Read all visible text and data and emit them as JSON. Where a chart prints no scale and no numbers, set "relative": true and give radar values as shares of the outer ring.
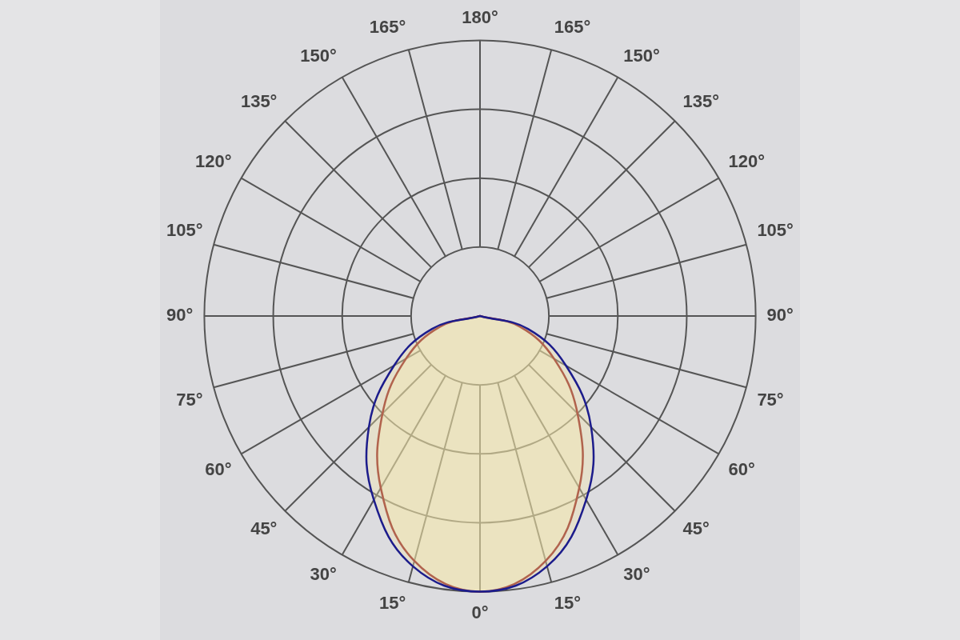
{
  "chart_data": {
    "type": "radar",
    "relative": true,
    "grid": true,
    "legend": false,
    "marker": "none",
    "categories": [
      "180°",
      "165°",
      "150°",
      "135°",
      "120°",
      "105°",
      "90°",
      "75°",
      "60°",
      "45°",
      "30°",
      "15°",
      "0°",
      "15°",
      "30°",
      "45°",
      "60°",
      "75°",
      "90°",
      "105°",
      "120°",
      "135°",
      "150°",
      "165°"
    ],
    "series": [
      {
        "color": "#1c1c8c",
        "values": [
          0,
          0,
          0,
          0,
          0,
          0,
          0,
          0.18,
          0.36,
          0.57,
          0.77,
          0.94,
          1,
          0.94,
          0.77,
          0.57,
          0.36,
          0.18,
          0,
          0,
          0,
          0,
          0,
          0
        ]
      },
      {
        "color": "#8c1c1c",
        "values": [
          0,
          0,
          0,
          0,
          0,
          0,
          0,
          0.15,
          0.31,
          0.5,
          0.72,
          0.92,
          1,
          0.92,
          0.72,
          0.5,
          0.31,
          0.15,
          0,
          0,
          0,
          0,
          0,
          0
        ]
      }
    ]
  }
}
